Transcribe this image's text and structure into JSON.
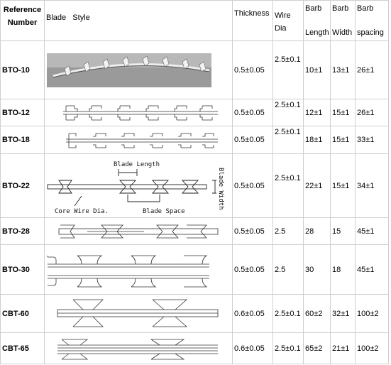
{
  "headers": {
    "reference": [
      "Reference",
      "Number"
    ],
    "blade_style": "Blade   Style",
    "thickness": "Thickness",
    "wire": [
      "Wire",
      "Dia"
    ],
    "barb_length": [
      "Barb",
      "Length"
    ],
    "barb_width": [
      "Barb",
      "Width"
    ],
    "barb_spacing": [
      "Barb",
      "spacing"
    ]
  },
  "diagram_labels": {
    "blade_length": "Blade Length",
    "blade_width": "Blade Width",
    "core_wire_dia": "Core Wire Dia.",
    "blade_space": "Blade Space"
  },
  "rows": [
    {
      "ref": "BTO-10",
      "thickness": "0.5±0.05",
      "wire": "2.5±0.1",
      "length": "10±1",
      "width": "13±1",
      "spacing": "26±1"
    },
    {
      "ref": "BTO-12",
      "thickness": "0.5±0.05",
      "wire": "2.5±0.1",
      "length": "12±1",
      "width": "15±1",
      "spacing": "26±1"
    },
    {
      "ref": "BTO-18",
      "thickness": "0.5±0.05",
      "wire": "2.5±0.1",
      "length": "18±1",
      "width": "15±1",
      "spacing": "33±1"
    },
    {
      "ref": "BTO-22",
      "thickness": "0.5±0.05",
      "wire": "2.5±0.1",
      "length": "22±1",
      "width": "15±1",
      "spacing": "34±1"
    },
    {
      "ref": "BTO-28",
      "thickness": "0.5±0.05",
      "wire": "2.5",
      "length": "28",
      "width": "15",
      "spacing": "45±1"
    },
    {
      "ref": "BTO-30",
      "thickness": "0.5±0.05",
      "wire": "2.5",
      "length": "30",
      "width": "18",
      "spacing": "45±1"
    },
    {
      "ref": "CBT-60",
      "thickness": "0.6±0.05",
      "wire": "2.5±0.1",
      "length": "60±2",
      "width": "32±1",
      "spacing": "100±2"
    },
    {
      "ref": "CBT-65",
      "thickness": "0.6±0.05",
      "wire": "2.5±0.1",
      "length": "65±2",
      "width": "21±1",
      "spacing": "100±2"
    }
  ]
}
